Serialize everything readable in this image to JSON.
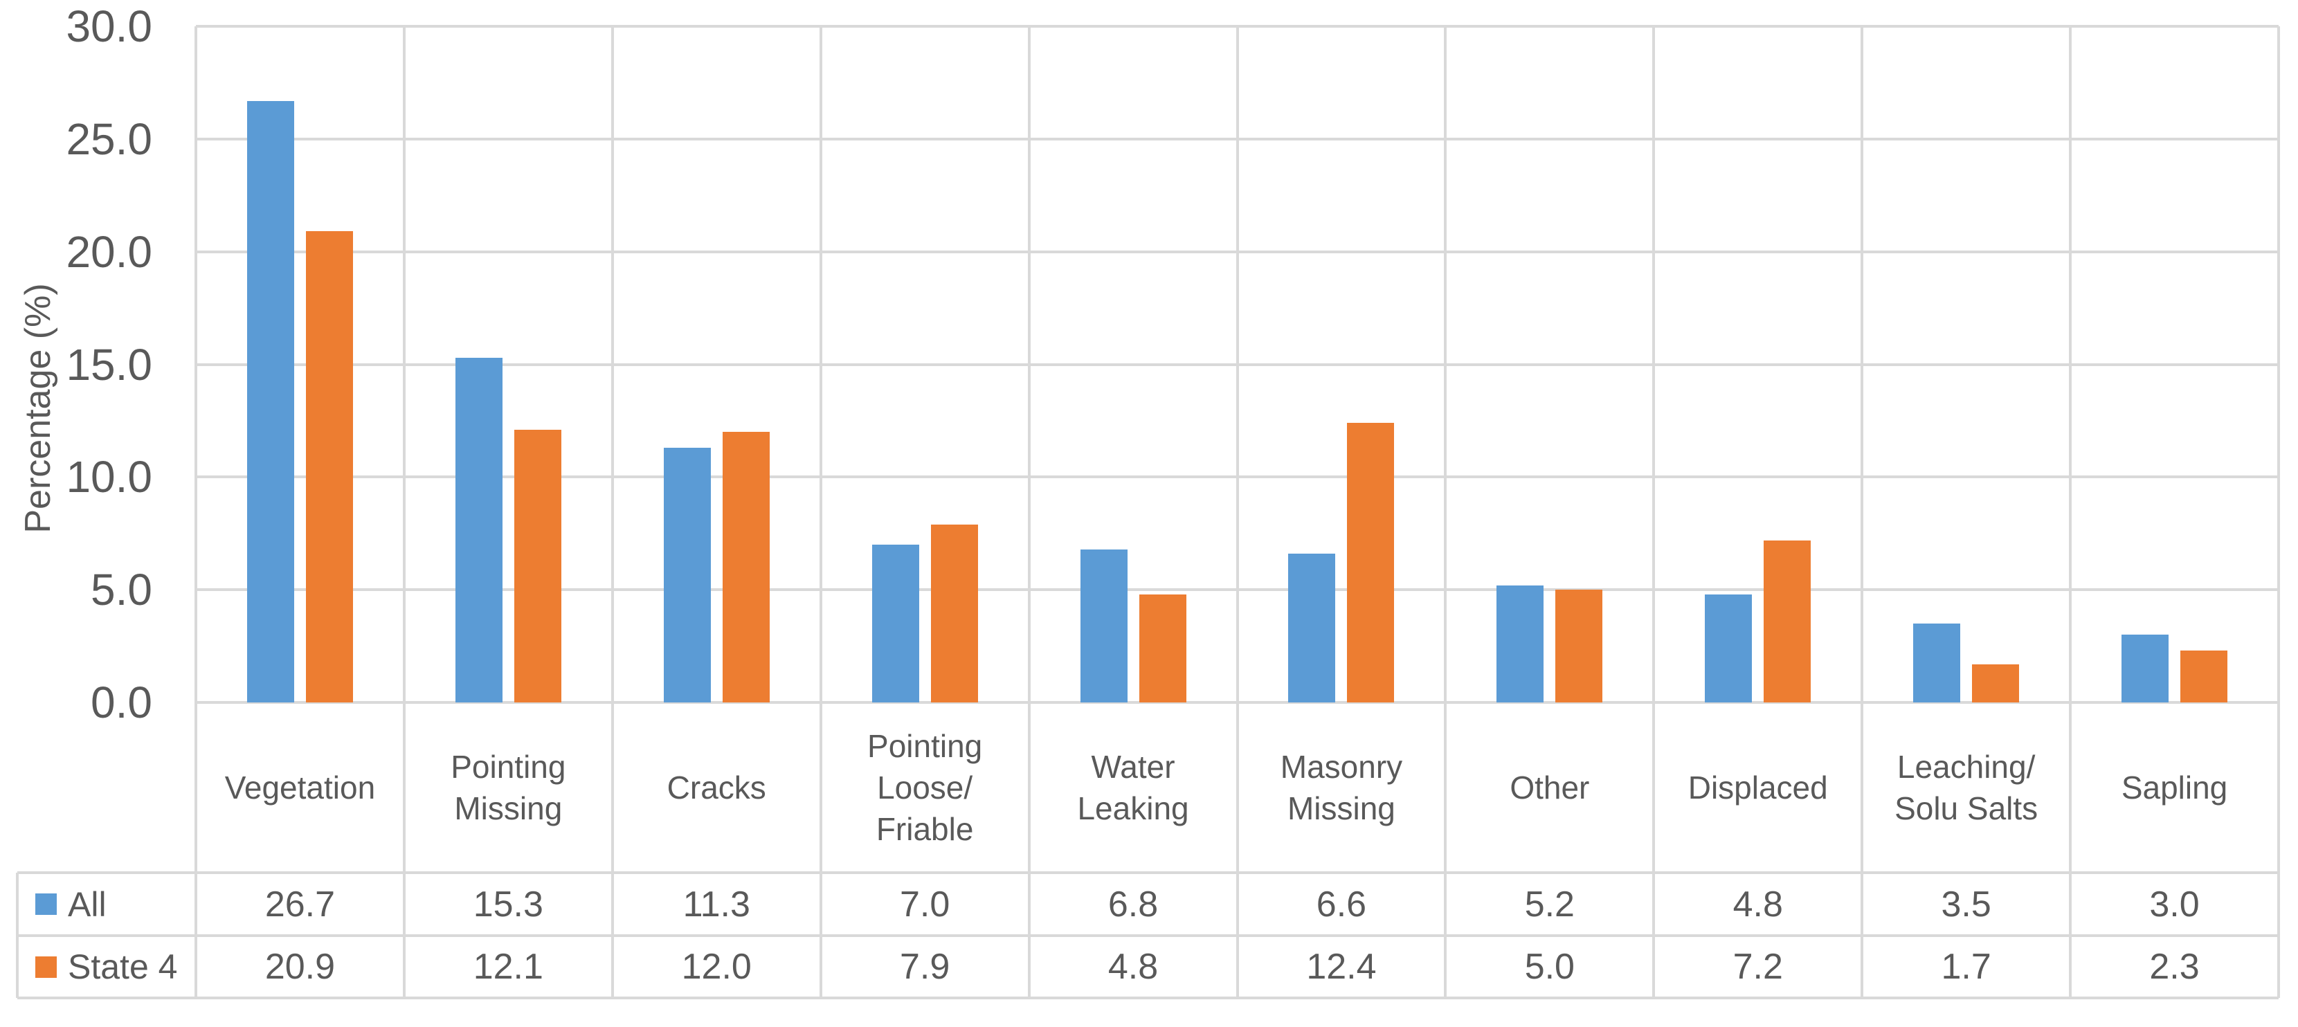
{
  "chart_data": {
    "type": "bar",
    "title": "",
    "xlabel": "",
    "ylabel": "Percentage (%)",
    "ylim": [
      0,
      30
    ],
    "ytick_step": 5,
    "ytick_labels": [
      "30.0",
      "25.0",
      "20.0",
      "15.0",
      "10.0",
      "5.0",
      "0.0"
    ],
    "grid": true,
    "legend_position": "data-table-left",
    "categories": [
      "Vegetation",
      "Pointing\nMissing",
      "Cracks",
      "Pointing\nLoose/\nFriable",
      "Water\nLeaking",
      "Masonry\nMissing",
      "Other",
      "Displaced",
      "Leaching/\nSolu Salts",
      "Sapling"
    ],
    "series": [
      {
        "name": "All",
        "color": "#5B9BD5",
        "values": [
          26.7,
          15.3,
          11.3,
          7.0,
          6.8,
          6.6,
          5.2,
          4.8,
          3.5,
          3.0
        ]
      },
      {
        "name": "State 4",
        "color": "#ED7D31",
        "values": [
          20.9,
          12.1,
          12.0,
          7.9,
          4.8,
          12.4,
          5.0,
          7.2,
          1.7,
          2.3
        ]
      }
    ],
    "data_table_shown": true
  },
  "colors": {
    "series_all": "#5B9BD5",
    "series_state4": "#ED7D31",
    "gridline": "#D9D9D9",
    "text": "#595959",
    "background": "#FFFFFF"
  }
}
